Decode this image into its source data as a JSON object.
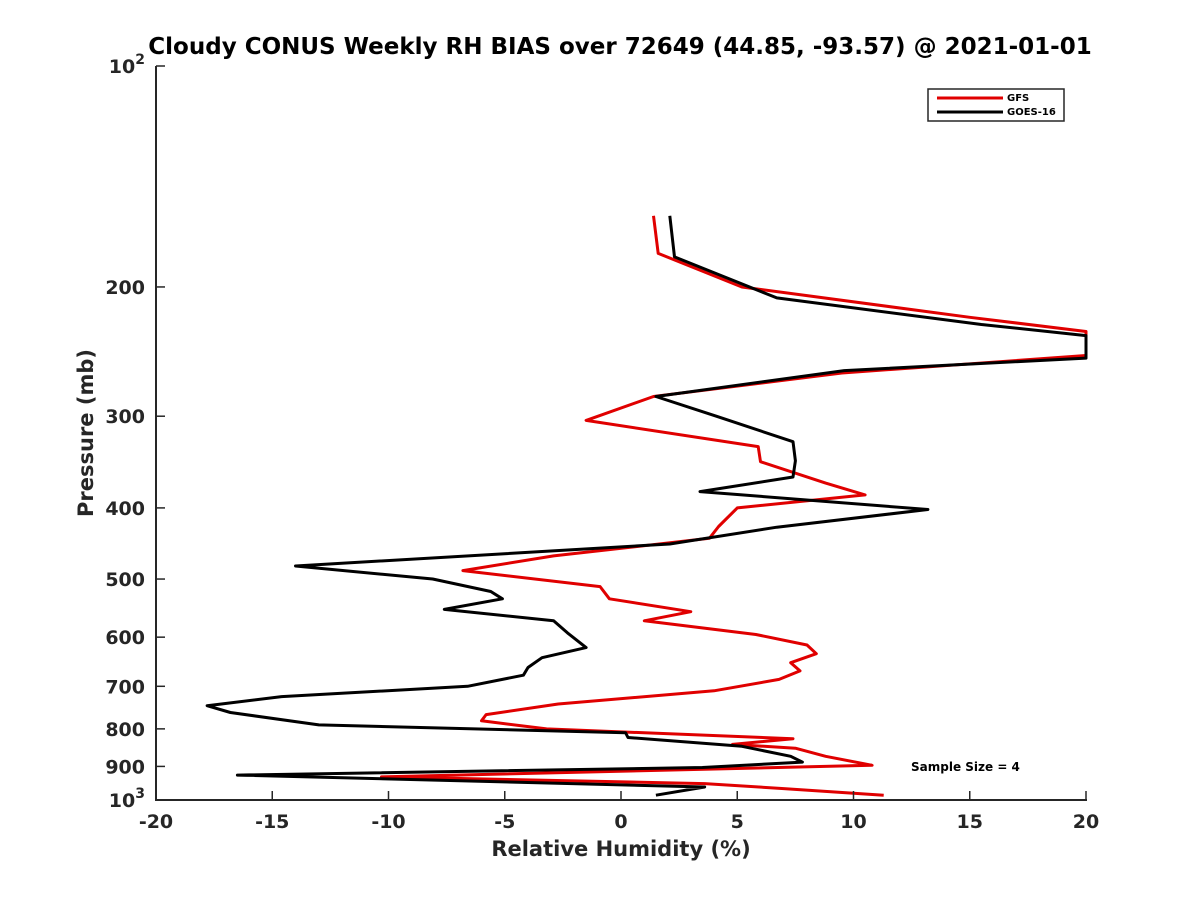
{
  "chart_data": {
    "type": "line",
    "title": "Cloudy CONUS Weekly RH BIAS over 72649 (44.85, -93.57) @ 2021-01-01",
    "xlabel": "Relative Humidity (%)",
    "ylabel": "Pressure (mb)",
    "xlim": [
      -20,
      20
    ],
    "ylim": [
      100,
      1000
    ],
    "yscale": "log",
    "yreversed": true,
    "grid": false,
    "legend_placement": "top-right",
    "x_ticks": [
      {
        "value": -20,
        "label": "-20"
      },
      {
        "value": -15,
        "label": "-15"
      },
      {
        "value": -10,
        "label": "-10"
      },
      {
        "value": -5,
        "label": "-5"
      },
      {
        "value": 0,
        "label": "0"
      },
      {
        "value": 5,
        "label": "5"
      },
      {
        "value": 10,
        "label": "10"
      },
      {
        "value": 15,
        "label": "15"
      },
      {
        "value": 20,
        "label": "20"
      }
    ],
    "y_ticks": [
      {
        "value": 200,
        "label": "200"
      },
      {
        "value": 300,
        "label": "300"
      },
      {
        "value": 400,
        "label": "400"
      },
      {
        "value": 500,
        "label": "500"
      },
      {
        "value": 600,
        "label": "600"
      },
      {
        "value": 700,
        "label": "700"
      },
      {
        "value": 800,
        "label": "800"
      },
      {
        "value": 900,
        "label": "900"
      }
    ],
    "y_ticks_power": [
      {
        "value": 100,
        "base": "10",
        "exp": "2"
      },
      {
        "value": 1000,
        "base": "10",
        "exp": "3"
      }
    ],
    "annotation": "Sample Size = 4",
    "series": [
      {
        "name": "GFS",
        "color": "#e00000",
        "points": [
          [
            1.4,
            160
          ],
          [
            1.6,
            180
          ],
          [
            5.2,
            200
          ],
          [
            15.0,
            220
          ],
          [
            20.0,
            230
          ],
          [
            20.0,
            248
          ],
          [
            9.5,
            262
          ],
          [
            1.4,
            282
          ],
          [
            -1.5,
            304
          ],
          [
            5.9,
            330
          ],
          [
            6.0,
            346
          ],
          [
            8.8,
            370
          ],
          [
            10.5,
            384
          ],
          [
            5.0,
            400
          ],
          [
            4.2,
            424
          ],
          [
            3.8,
            440
          ],
          [
            -2.9,
            465
          ],
          [
            -6.8,
            487
          ],
          [
            -0.9,
            512
          ],
          [
            -0.5,
            532
          ],
          [
            3.0,
            554
          ],
          [
            1.0,
            570
          ],
          [
            5.8,
            595
          ],
          [
            8.0,
            615
          ],
          [
            8.4,
            632
          ],
          [
            7.3,
            650
          ],
          [
            7.7,
            667
          ],
          [
            6.8,
            685
          ],
          [
            4.0,
            710
          ],
          [
            -2.7,
            740
          ],
          [
            -5.8,
            765
          ],
          [
            -6.0,
            780
          ],
          [
            -3.2,
            800
          ],
          [
            7.4,
            825
          ],
          [
            4.8,
            840
          ],
          [
            7.5,
            850
          ],
          [
            8.8,
            872
          ],
          [
            10.8,
            897
          ],
          [
            -10.3,
            930
          ],
          [
            3.6,
            950
          ],
          [
            7.0,
            965
          ],
          [
            11.3,
            985
          ]
        ]
      },
      {
        "name": "GOES-16",
        "color": "#000000",
        "points": [
          [
            2.1,
            160
          ],
          [
            2.3,
            182
          ],
          [
            6.7,
            207
          ],
          [
            15.5,
            225
          ],
          [
            20.0,
            233
          ],
          [
            20.0,
            250
          ],
          [
            9.6,
            260
          ],
          [
            1.5,
            282
          ],
          [
            4.1,
            300
          ],
          [
            7.4,
            325
          ],
          [
            7.5,
            345
          ],
          [
            7.4,
            363
          ],
          [
            3.4,
            380
          ],
          [
            13.2,
            402
          ],
          [
            6.7,
            425
          ],
          [
            2.1,
            448
          ],
          [
            -14.0,
            480
          ],
          [
            -8.1,
            500
          ],
          [
            -5.6,
            520
          ],
          [
            -5.1,
            532
          ],
          [
            -7.6,
            550
          ],
          [
            -2.9,
            570
          ],
          [
            -2.3,
            592
          ],
          [
            -1.5,
            620
          ],
          [
            -3.4,
            640
          ],
          [
            -4.0,
            660
          ],
          [
            -4.2,
            676
          ],
          [
            -6.6,
            700
          ],
          [
            -14.6,
            723
          ],
          [
            -17.8,
            744
          ],
          [
            -16.8,
            760
          ],
          [
            -13.0,
            790
          ],
          [
            0.2,
            810
          ],
          [
            0.3,
            822
          ],
          [
            5.2,
            845
          ],
          [
            7.3,
            872
          ],
          [
            7.8,
            888
          ],
          [
            3.5,
            903
          ],
          [
            -16.5,
            925
          ],
          [
            3.6,
            960
          ],
          [
            1.5,
            985
          ]
        ]
      }
    ]
  }
}
